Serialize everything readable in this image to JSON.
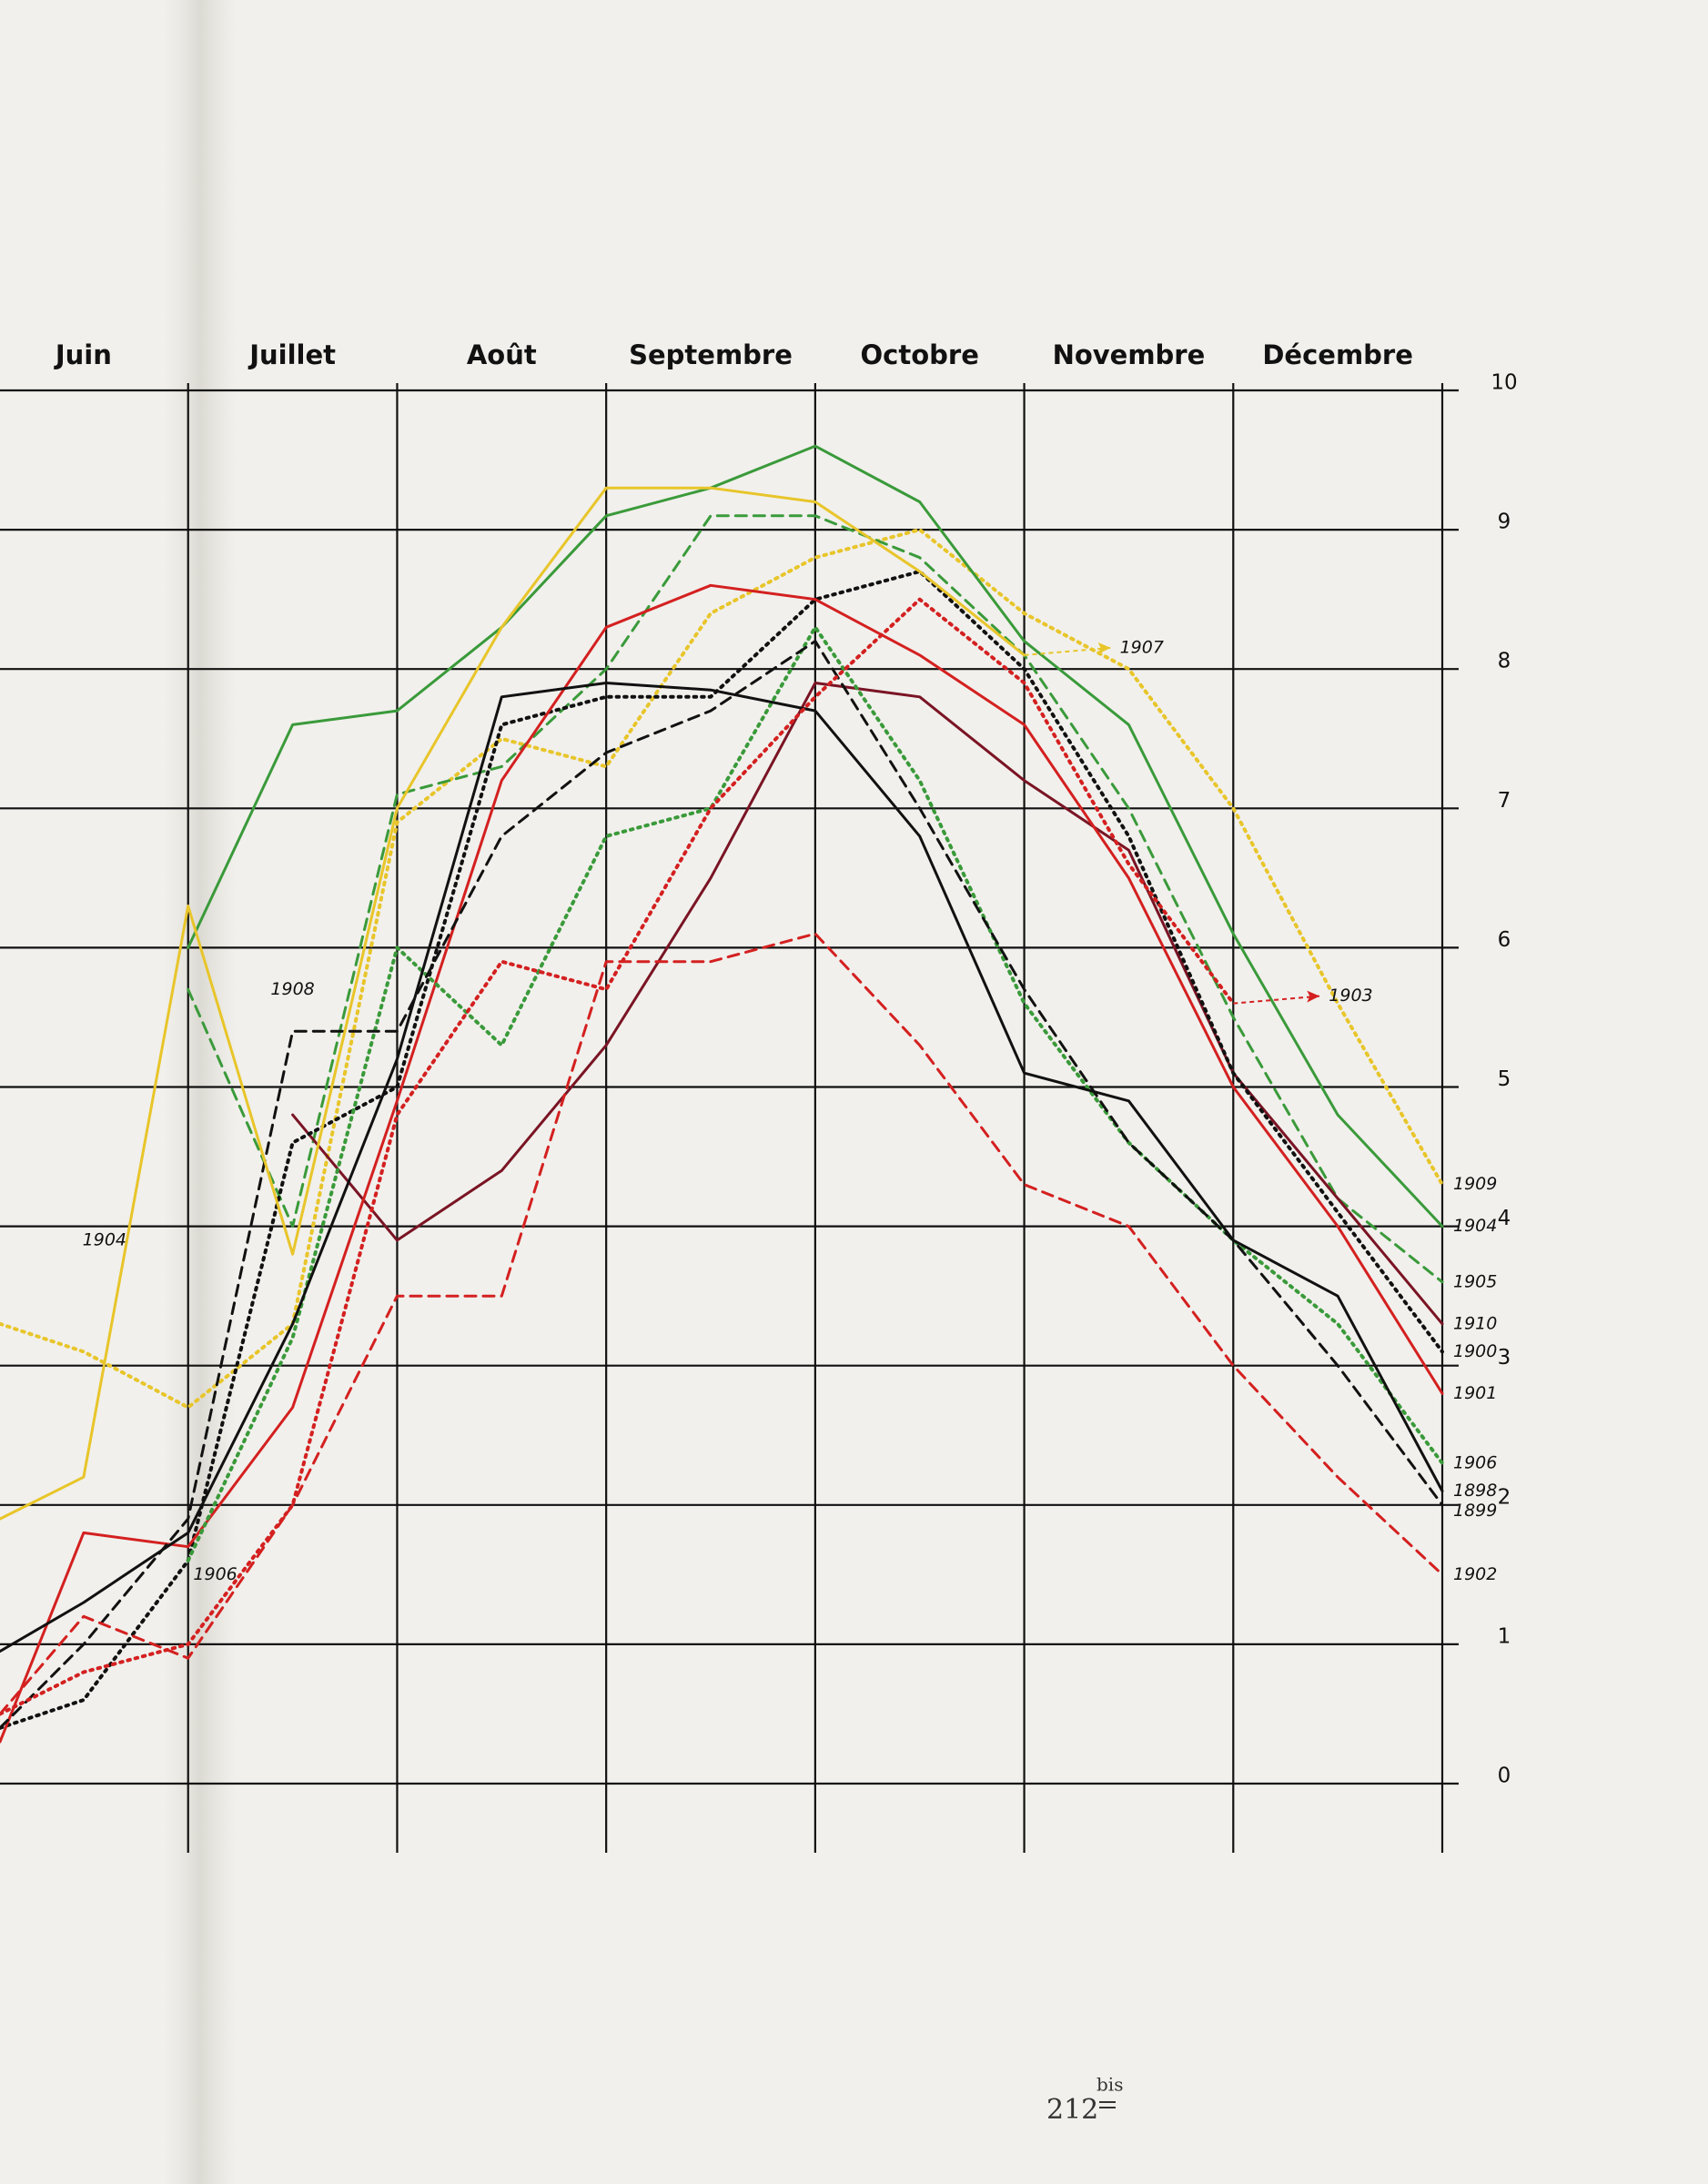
{
  "chart_data": {
    "type": "line",
    "x": [
      6.1,
      6.5,
      7,
      7.5,
      8,
      8.5,
      9,
      9.5,
      10,
      10.5,
      11,
      11.5,
      12,
      12.5,
      13
    ],
    "xlim": [
      6.1,
      13
    ],
    "xticks": [
      {
        "value": 6.5,
        "label": "Juin"
      },
      {
        "value": 7.5,
        "label": "Juillet"
      },
      {
        "value": 8.5,
        "label": "Août"
      },
      {
        "value": 9.5,
        "label": "Septembre"
      },
      {
        "value": 10.5,
        "label": "Octobre"
      },
      {
        "value": 11.5,
        "label": "Novembre"
      },
      {
        "value": 12.5,
        "label": "Décembre"
      }
    ],
    "ylim": [
      0,
      10
    ],
    "yticks": [
      0,
      1,
      2,
      3,
      4,
      5,
      6,
      7,
      8,
      9,
      10
    ],
    "grid": true,
    "series": [
      {
        "name": "1909",
        "color": "#e8c52a",
        "style": "dotted",
        "values": [
          3.3,
          3.1,
          2.7,
          3.3,
          6.9,
          7.5,
          7.3,
          8.4,
          8.8,
          9.0,
          8.4,
          8.0,
          7.0,
          5.6,
          4.3
        ]
      },
      {
        "name": "1904",
        "color": "#3a9a3a",
        "style": "solid",
        "values": [
          null,
          null,
          6.0,
          7.6,
          7.7,
          8.3,
          9.1,
          9.3,
          9.6,
          9.2,
          8.2,
          7.6,
          6.1,
          4.8,
          4.0
        ]
      },
      {
        "name": "1905",
        "color": "#3a9a3a",
        "style": "dashed",
        "values": [
          null,
          null,
          5.7,
          4.0,
          7.1,
          7.3,
          8.0,
          9.1,
          9.1,
          8.8,
          8.1,
          7.0,
          5.5,
          4.2,
          3.6
        ]
      },
      {
        "name": "1910",
        "color": "#7a1424",
        "style": "solid",
        "values": [
          null,
          null,
          null,
          4.8,
          3.9,
          4.4,
          5.3,
          6.5,
          7.9,
          7.8,
          7.2,
          6.7,
          5.1,
          4.2,
          3.3
        ]
      },
      {
        "name": "1900",
        "color": "#111111",
        "style": "dotted",
        "values": [
          0.4,
          0.6,
          1.6,
          4.6,
          5.0,
          7.6,
          7.8,
          7.8,
          8.5,
          8.7,
          8.0,
          6.8,
          5.1,
          4.1,
          3.1
        ]
      },
      {
        "name": "1901",
        "color": "#d42020",
        "style": "solid",
        "values": [
          0.3,
          1.8,
          1.7,
          2.7,
          4.9,
          7.2,
          8.3,
          8.6,
          8.5,
          8.1,
          7.6,
          6.5,
          5.0,
          4.0,
          2.8
        ]
      },
      {
        "name": "1906",
        "color": "#3a9a3a",
        "style": "dotted",
        "values": [
          null,
          null,
          1.6,
          3.2,
          6.0,
          5.3,
          6.8,
          7.0,
          8.3,
          7.2,
          5.6,
          4.6,
          3.9,
          3.3,
          2.3
        ]
      },
      {
        "name": "1898",
        "color": "#111111",
        "style": "solid",
        "values": [
          0.95,
          1.3,
          1.8,
          3.3,
          5.2,
          7.8,
          7.9,
          7.85,
          7.7,
          6.8,
          5.1,
          4.9,
          3.9,
          3.5,
          2.1
        ]
      },
      {
        "name": "1899",
        "color": "#111111",
        "style": "dashed",
        "values": [
          0.4,
          1.0,
          1.9,
          5.4,
          5.4,
          6.8,
          7.4,
          7.7,
          8.2,
          7.0,
          5.7,
          4.6,
          3.9,
          3.0,
          2.0
        ]
      },
      {
        "name": "1902",
        "color": "#d42020",
        "style": "dashed",
        "values": [
          0.5,
          1.2,
          0.9,
          2.0,
          3.5,
          3.5,
          5.9,
          5.9,
          6.1,
          5.3,
          4.3,
          4.0,
          3.0,
          2.2,
          1.5
        ]
      },
      {
        "name": "1903",
        "color": "#d42020",
        "style": "dotted",
        "values": [
          0.5,
          0.8,
          1.0,
          2.0,
          4.8,
          5.9,
          5.7,
          7.0,
          7.8,
          8.5,
          7.9,
          6.6,
          5.6,
          null,
          null
        ]
      },
      {
        "name": "1907",
        "color": "#e8c52a",
        "style": "solid",
        "values": [
          1.9,
          2.2,
          6.3,
          3.8,
          7.0,
          8.3,
          9.3,
          9.3,
          9.2,
          8.7,
          8.1,
          null,
          null,
          null,
          null
        ]
      }
    ],
    "annotations": [
      {
        "text": "1904",
        "x": 6.6,
        "y": 3.9
      },
      {
        "text": "1906",
        "x": 7.13,
        "y": 1.5
      },
      {
        "text": "1908",
        "x": 7.5,
        "y": 5.7
      }
    ],
    "page_number": "212",
    "page_suffix": "bis"
  }
}
